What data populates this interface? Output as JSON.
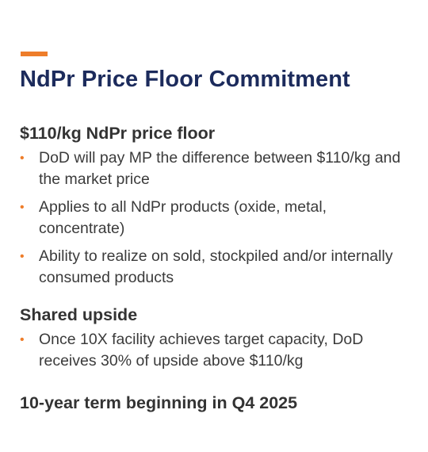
{
  "slide": {
    "title": "NdPr Price Floor Commitment",
    "accent_color": "#ee7d2a",
    "title_color": "#1c2b5c",
    "sections": [
      {
        "heading": "$110/kg NdPr price floor",
        "bullets": [
          "DoD will pay MP the difference between $110/kg and the market price",
          "Applies to all NdPr products (oxide, metal, concentrate)",
          "Ability to realize on sold, stockpiled and/or internally consumed products"
        ]
      },
      {
        "heading": "Shared upside",
        "bullets": [
          "Once 10X facility achieves target capacity, DoD receives 30% of upside above $110/kg"
        ]
      },
      {
        "heading": "10-year term beginning in Q4 2025",
        "bullets": []
      }
    ]
  }
}
